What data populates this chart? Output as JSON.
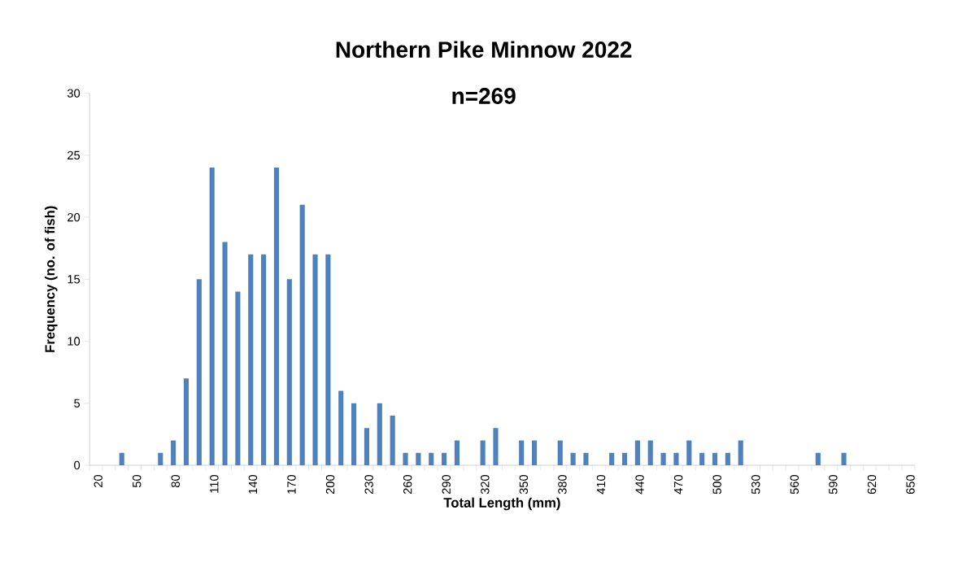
{
  "chart_data": {
    "type": "bar",
    "title": "Northern Pike Minnow 2022",
    "subtitle": "n=269",
    "xlabel": "Total Length (mm)",
    "ylabel": "Frequency (no. of fish)",
    "categories": [
      "20",
      null,
      null,
      "50",
      null,
      null,
      "80",
      null,
      null,
      "110",
      null,
      null,
      "140",
      null,
      null,
      "170",
      null,
      null,
      "200",
      null,
      null,
      "230",
      null,
      null,
      "260",
      null,
      null,
      "290",
      null,
      null,
      "320",
      null,
      null,
      "350",
      null,
      null,
      "380",
      null,
      null,
      "410",
      null,
      null,
      "440",
      null,
      null,
      "470",
      null,
      null,
      "500",
      null,
      null,
      "530",
      null,
      null,
      "560",
      null,
      null,
      "590",
      null,
      null,
      "620",
      null,
      null,
      "650"
    ],
    "values": [
      0,
      0,
      1,
      0,
      0,
      1,
      2,
      7,
      15,
      24,
      18,
      14,
      17,
      17,
      24,
      15,
      21,
      17,
      17,
      6,
      5,
      3,
      5,
      4,
      1,
      1,
      1,
      1,
      2,
      0,
      2,
      3,
      0,
      2,
      2,
      0,
      2,
      1,
      1,
      0,
      1,
      1,
      2,
      2,
      1,
      1,
      2,
      1,
      1,
      1,
      2,
      0,
      0,
      0,
      0,
      0,
      1,
      0,
      1,
      0,
      0,
      0,
      0,
      0
    ],
    "color": "#4f81bd",
    "ylim": [
      0,
      30
    ],
    "yticks": [
      0,
      5,
      10,
      15,
      20,
      25,
      30
    ]
  }
}
